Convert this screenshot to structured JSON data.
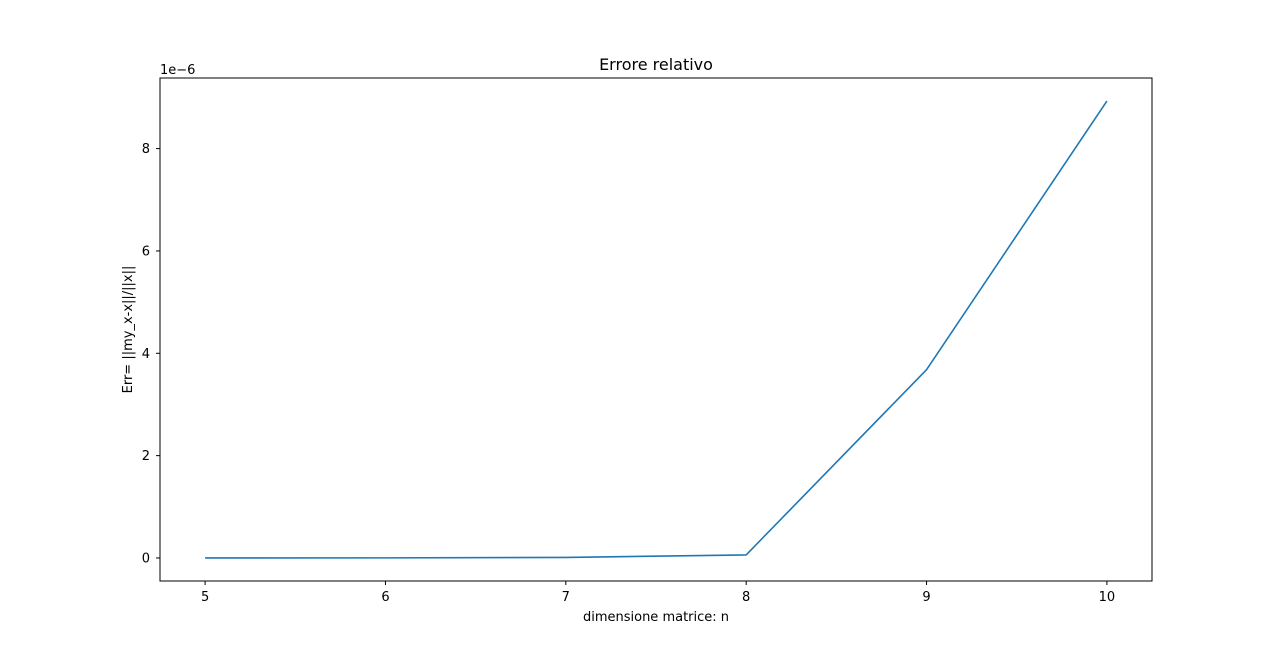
{
  "chart_data": {
    "type": "line",
    "title": "Errore relativo",
    "xlabel": "dimensione matrice: n",
    "ylabel": "Err= ||my_x-x||/||x||",
    "y_offset_label": "1e−6",
    "x": [
      5,
      6,
      7,
      8,
      9,
      10
    ],
    "series": [
      {
        "values": [
          0.0,
          0.002,
          0.01,
          0.06,
          3.68,
          8.93
        ]
      }
    ],
    "x_ticks": [
      5,
      6,
      7,
      8,
      9,
      10
    ],
    "y_ticks": [
      0,
      2,
      4,
      6,
      8
    ],
    "xlim": [
      4.75,
      10.25
    ],
    "ylim": [
      -0.45,
      9.38
    ],
    "grid": false,
    "line_color": "#1f77b4"
  }
}
